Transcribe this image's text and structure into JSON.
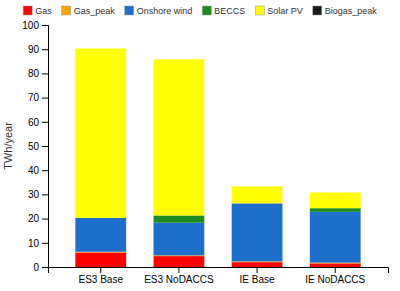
{
  "chart_data": {
    "type": "bar",
    "stacked": true,
    "legend": "top",
    "categories": [
      "ES3 Base",
      "ES3 NoDACCS",
      "IE Base",
      "IE NoDACCS"
    ],
    "series": [
      {
        "name": "Gas",
        "color": "#FF0000",
        "values": [
          6.0,
          4.5,
          2.0,
          1.5
        ]
      },
      {
        "name": "Gas_peak",
        "color": "#FFA500",
        "values": [
          0.3,
          0.3,
          0.3,
          0.3
        ]
      },
      {
        "name": "Onshore wind",
        "color": "#1E6FCC",
        "values": [
          14.0,
          13.5,
          24.0,
          21.0
        ]
      },
      {
        "name": "BECCS",
        "color": "#1E8B1E",
        "values": [
          0.0,
          3.0,
          0.0,
          1.5
        ]
      },
      {
        "name": "Solar PV",
        "color": "#FFFF00",
        "values": [
          70.0,
          64.5,
          7.0,
          6.5
        ]
      },
      {
        "name": "Biogas_peak",
        "color": "#1A1A1A",
        "values": [
          0.0,
          0.0,
          0.0,
          0.0
        ]
      }
    ],
    "ylabel": "TWh/year",
    "ylim": [
      0,
      100
    ],
    "yticks": [
      0,
      10,
      20,
      30,
      40,
      50,
      60,
      70,
      80,
      90,
      100
    ]
  }
}
